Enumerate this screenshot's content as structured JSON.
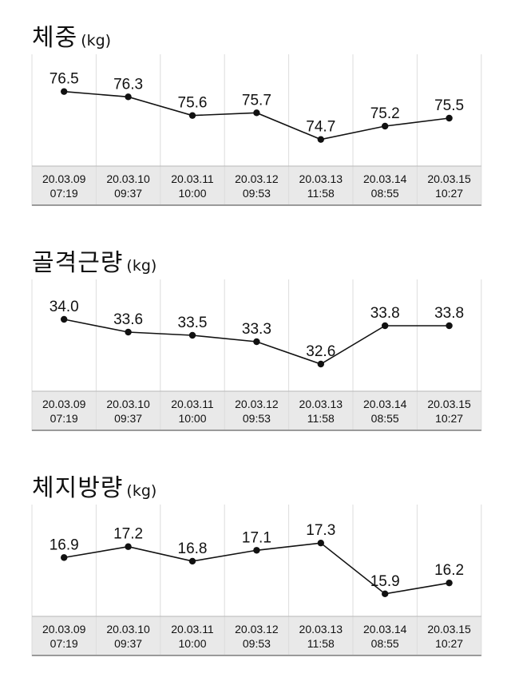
{
  "chart_data": [
    {
      "type": "line",
      "title": "체중",
      "unit": "(kg)",
      "categories": [
        [
          "20.03.09",
          "07:19"
        ],
        [
          "20.03.10",
          "09:37"
        ],
        [
          "20.03.11",
          "10:00"
        ],
        [
          "20.03.12",
          "09:53"
        ],
        [
          "20.03.13",
          "11:58"
        ],
        [
          "20.03.14",
          "08:55"
        ],
        [
          "20.03.15",
          "10:27"
        ]
      ],
      "labels": [
        "76.5",
        "76.3",
        "75.6",
        "75.7",
        "74.7",
        "75.2",
        "75.5"
      ],
      "values": [
        76.5,
        76.3,
        75.6,
        75.7,
        74.7,
        75.2,
        75.5
      ],
      "ylim": [
        74.0,
        77.0
      ],
      "grid": "vertical"
    },
    {
      "type": "line",
      "title": "골격근량",
      "unit": "(kg)",
      "categories": [
        [
          "20.03.09",
          "07:19"
        ],
        [
          "20.03.10",
          "09:37"
        ],
        [
          "20.03.11",
          "10:00"
        ],
        [
          "20.03.12",
          "09:53"
        ],
        [
          "20.03.13",
          "11:58"
        ],
        [
          "20.03.14",
          "08:55"
        ],
        [
          "20.03.15",
          "10:27"
        ]
      ],
      "labels": [
        "34.0",
        "33.6",
        "33.5",
        "33.3",
        "32.6",
        "33.8",
        "33.8"
      ],
      "values": [
        34.0,
        33.6,
        33.5,
        33.3,
        32.6,
        33.8,
        33.8
      ],
      "ylim": [
        32.0,
        34.5
      ],
      "grid": "vertical"
    },
    {
      "type": "line",
      "title": "체지방량",
      "unit": "(kg)",
      "categories": [
        [
          "20.03.09",
          "07:19"
        ],
        [
          "20.03.10",
          "09:37"
        ],
        [
          "20.03.11",
          "10:00"
        ],
        [
          "20.03.12",
          "09:53"
        ],
        [
          "20.03.13",
          "11:58"
        ],
        [
          "20.03.14",
          "08:55"
        ],
        [
          "20.03.15",
          "10:27"
        ]
      ],
      "labels": [
        "16.9",
        "17.2",
        "16.8",
        "17.1",
        "17.3",
        "15.9",
        "16.2"
      ],
      "values": [
        16.9,
        17.2,
        16.8,
        17.1,
        17.3,
        15.9,
        16.2
      ],
      "ylim": [
        15.5,
        17.7
      ],
      "grid": "vertical"
    }
  ]
}
